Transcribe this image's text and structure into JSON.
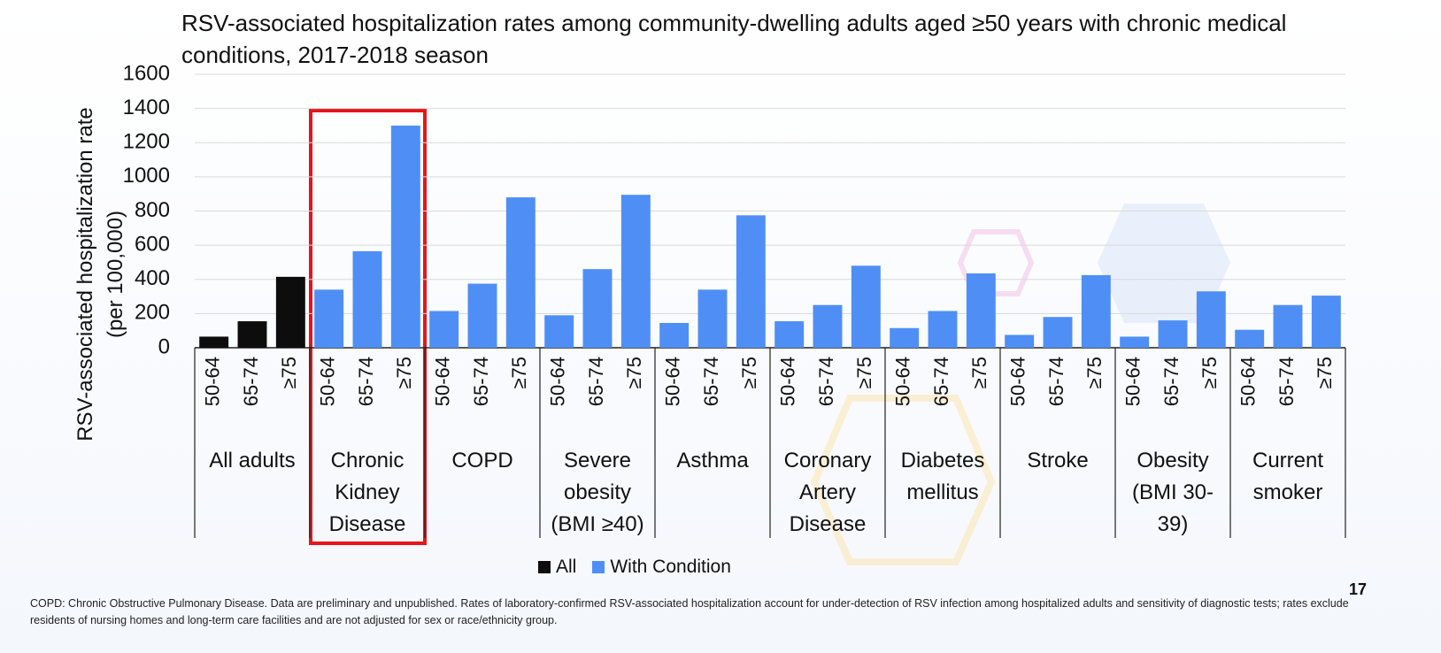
{
  "chart_data": {
    "type": "bar",
    "title": "RSV-associated hospitalization rates among community-dwelling adults aged ≥50 years with chronic medical conditions, 2017-2018 season",
    "y_label": "RSV-associated hospitalization rate (per 100,000)",
    "categories": [
      "50-64",
      "65-74",
      "≥75",
      "50-64",
      "65-74",
      "≥75",
      "50-64",
      "65-74",
      "≥75",
      "50-64",
      "65-74",
      "≥75",
      "50-64",
      "65-74",
      "≥75",
      "50-64",
      "65-74",
      "≥75",
      "50-64",
      "65-74",
      "≥75",
      "50-64",
      "65-74",
      "≥75",
      "50-64",
      "65-74",
      "≥75",
      "50-64",
      "65-74",
      "≥75"
    ],
    "groups": [
      "All adults",
      "Chronic Kidney Disease",
      "COPD",
      "Severe obesity (BMI ≥40)",
      "Asthma",
      "Coronary Artery Disease",
      "Diabetes mellitus",
      "Stroke",
      "Obesity (BMI 30-39)",
      "Current smoker"
    ],
    "series": [
      {
        "name": "All",
        "color": "#0d0d0d",
        "values": [
          65,
          155,
          415,
          null,
          null,
          null,
          null,
          null,
          null,
          null,
          null,
          null,
          null,
          null,
          null,
          null,
          null,
          null,
          null,
          null,
          null,
          null,
          null,
          null,
          null,
          null,
          null,
          null,
          null,
          null
        ]
      },
      {
        "name": "With Condition",
        "color": "#4f8ff5",
        "values": [
          null,
          null,
          null,
          340,
          565,
          1300,
          215,
          375,
          880,
          190,
          460,
          895,
          145,
          340,
          775,
          155,
          250,
          480,
          115,
          215,
          435,
          75,
          180,
          425,
          65,
          160,
          330,
          105,
          250,
          305
        ]
      }
    ],
    "ylim": [
      0,
      1600
    ],
    "yticks": [
      0,
      200,
      400,
      600,
      800,
      1000,
      1200,
      1400,
      1600
    ],
    "grid": true
  },
  "footnote": "COPD: Chronic Obstructive Pulmonary Disease. Data are preliminary and unpublished. Rates of laboratory-confirmed RSV-associated hospitalization account for under-detection of RSV infection among hospitalized adults and sensitivity of diagnostic tests; rates exclude residents of nursing homes and long-term care facilities and are not adjusted for sex or race/ethnicity group.",
  "page_number": "17"
}
